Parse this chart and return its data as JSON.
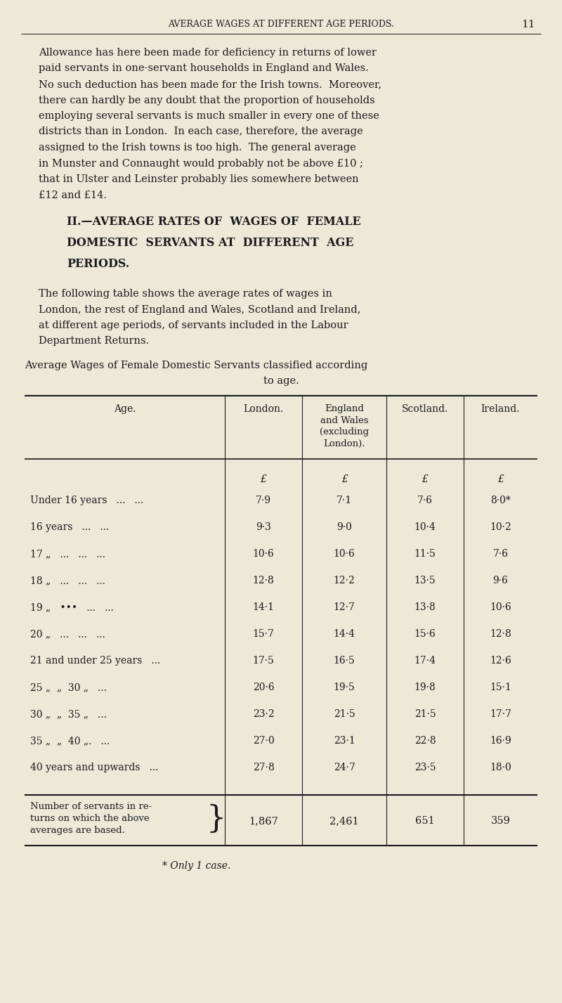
{
  "bg_color": "#ede8d8",
  "text_color": "#1a1a1a",
  "page_header": "AVERAGE WAGES AT DIFFERENT AGE PERIODS.",
  "page_number": "11",
  "paragraph1_lines": [
    "Allowance has here been made for deficiency in returns of lower",
    "paid servants in one-servant households in England and Wales.",
    "No such deduction has been made for the Irish towns.  Moreover,",
    "there can hardly be any doubt that the proportion of households",
    "employing several servants is much smaller in every one of these",
    "districts than in London.  In each case, therefore, the average",
    "assigned to the Irish towns is too high.  The general average",
    "in Munster and Connaught would probably not be above £10 ;",
    "that in Ulster and Leinster probably lies somewhere between",
    "£12 and £14."
  ],
  "section_heading_lines": [
    "II.—AVERAGE RATES OF  WAGES OF  FEMALE",
    "DOMESTIC  SERVANTS AT  DIFFERENT  AGE",
    "PERIODS."
  ],
  "paragraph2_lines": [
    "The following table shows the average rates of wages in",
    "London, the rest of England and Wales, Scotland and Ireland,",
    "at different age periods, of servants included in the Labour",
    "Department Returns."
  ],
  "table_caption_line1": "Average Wages of Female Domestic Servants classified according",
  "table_caption_line2": "to age.",
  "age_labels": [
    "Under 16 years   ...   ...",
    "16 years   ...   ...",
    "17 „   ...   ...   ...",
    "18 „   ...   ...   ...",
    "19 „   •••   ...   ...",
    "20 „   ...   ...   ...",
    "21 and under 25 years   ...",
    "25 „  „  30 „   ...",
    "30 „  „  35 „   ...",
    "35 „  „  40 „.   ...",
    "40 years and upwards   ..."
  ],
  "london_vals": [
    "7·9",
    "9·3",
    "10·6",
    "12·8",
    "14·1",
    "15·7",
    "17·5",
    "20·6",
    "23·2",
    "27·0",
    "27·8"
  ],
  "england_vals": [
    "7·1",
    "9·0",
    "10·6",
    "12·2",
    "12·7",
    "14·4",
    "16·5",
    "19·5",
    "21·5",
    "23·1",
    "24·7"
  ],
  "scotland_vals": [
    "7·6",
    "10·4",
    "11·5",
    "13·5",
    "13·8",
    "15·6",
    "17·4",
    "19·8",
    "21·5",
    "22·8",
    "23·5"
  ],
  "ireland_vals": [
    "8·0*",
    "10·2",
    "7·6",
    "9·6",
    "10·6",
    "12·8",
    "12·6",
    "15·1",
    "17·7",
    "16·9",
    "18·0"
  ],
  "number_vals": [
    "1,867",
    "2,461",
    "651",
    "359"
  ],
  "footnote": "* Only 1 case."
}
